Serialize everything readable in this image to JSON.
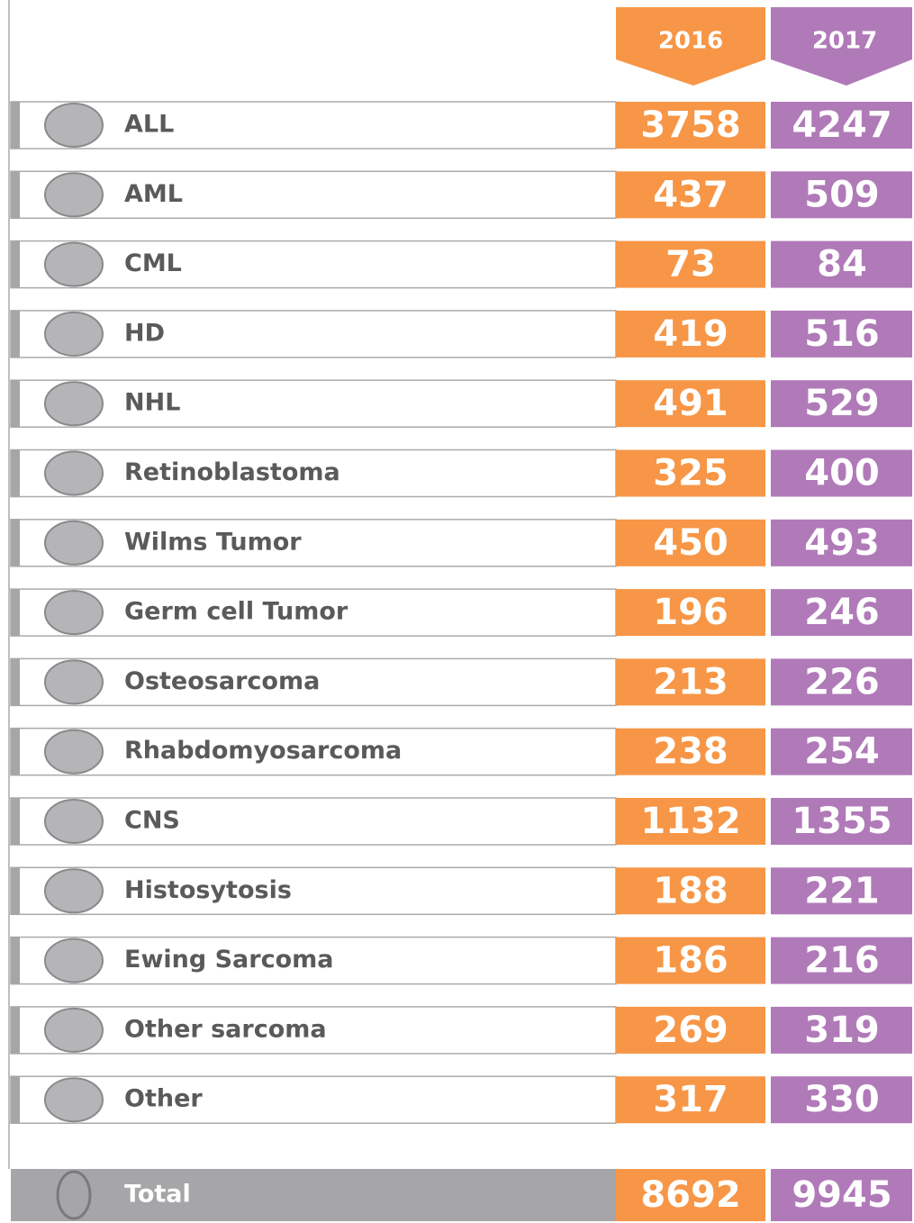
{
  "header": {
    "columns": [
      "2016",
      "2017"
    ]
  },
  "table": {
    "rows": [
      [
        "ALL",
        3758,
        4247
      ],
      [
        "AML",
        437,
        509
      ],
      [
        "CML",
        73,
        84
      ],
      [
        "HD",
        419,
        516
      ],
      [
        "NHL",
        491,
        529
      ],
      [
        "Retinoblastoma",
        325,
        400
      ],
      [
        "Wilms Tumor",
        450,
        493
      ],
      [
        "Germ cell Tumor",
        196,
        246
      ],
      [
        "Osteosarcoma",
        213,
        226
      ],
      [
        "Rhabdomyosarcoma",
        238,
        254
      ],
      [
        "CNS",
        1132,
        1355
      ],
      [
        "Histosytosis",
        188,
        221
      ],
      [
        "Ewing Sarcoma",
        186,
        216
      ],
      [
        "Other sarcoma",
        269,
        319
      ],
      [
        "Other",
        317,
        330
      ]
    ]
  },
  "total": {
    "label": "Total",
    "values": [
      8692,
      9945
    ]
  }
}
